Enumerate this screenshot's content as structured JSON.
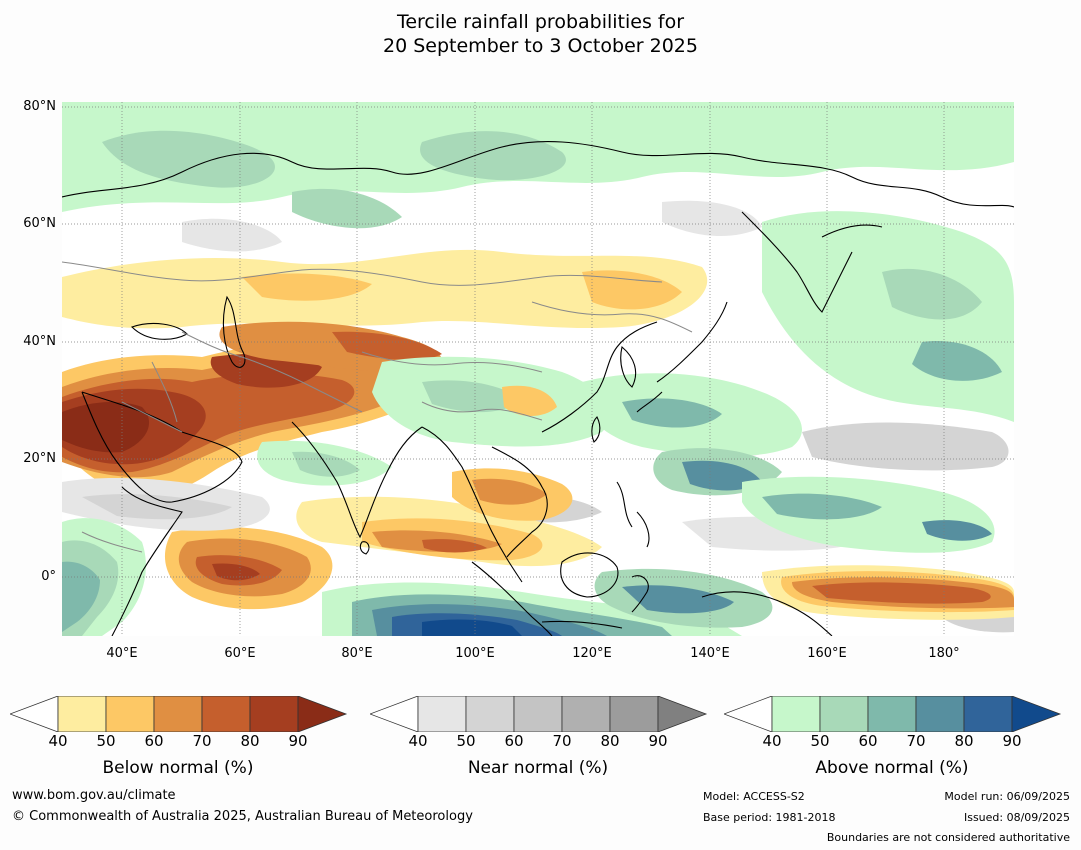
{
  "title": {
    "line1": "Tercile rainfall probabilities for",
    "line2": "20 September to 3 October 2025"
  },
  "map": {
    "lat_labels": [
      "80°N",
      "60°N",
      "40°N",
      "20°N",
      "0°"
    ],
    "lon_labels": [
      "40°E",
      "60°E",
      "80°E",
      "100°E",
      "120°E",
      "140°E",
      "160°E",
      "180°"
    ],
    "lat_range": [
      -10,
      81
    ],
    "lon_range": [
      30,
      192
    ]
  },
  "legends": [
    {
      "title": "Below normal (%)",
      "ticks": [
        "40",
        "50",
        "60",
        "70",
        "80",
        "90"
      ],
      "colors": [
        "#ffffff",
        "#feeda0",
        "#fdc865",
        "#e08f42",
        "#c55f2d",
        "#a53e20",
        "#8a2c17"
      ]
    },
    {
      "title": "Near normal (%)",
      "ticks": [
        "40",
        "50",
        "60",
        "70",
        "80",
        "90"
      ],
      "colors": [
        "#ffffff",
        "#e6e6e6",
        "#d4d4d4",
        "#c4c4c4",
        "#b0b0b0",
        "#9c9c9c",
        "#808080"
      ]
    },
    {
      "title": "Above normal (%)",
      "ticks": [
        "40",
        "50",
        "60",
        "70",
        "80",
        "90"
      ],
      "colors": [
        "#ffffff",
        "#c6f7cb",
        "#a8d9b8",
        "#7fb9ab",
        "#578f9f",
        "#30649a",
        "#114a8c"
      ]
    }
  ],
  "footer": {
    "website": "www.bom.gov.au/climate",
    "copyright": "© Commonwealth of Australia 2025, Australian Bureau of Meteorology",
    "model": "Model: ACCESS-S2",
    "base_period": "Base period: 1981-2018",
    "model_run": "Model run: 06/09/2025",
    "issued": "Issued: 08/09/2025",
    "disclaimer": "Boundaries are not considered authoritative"
  }
}
